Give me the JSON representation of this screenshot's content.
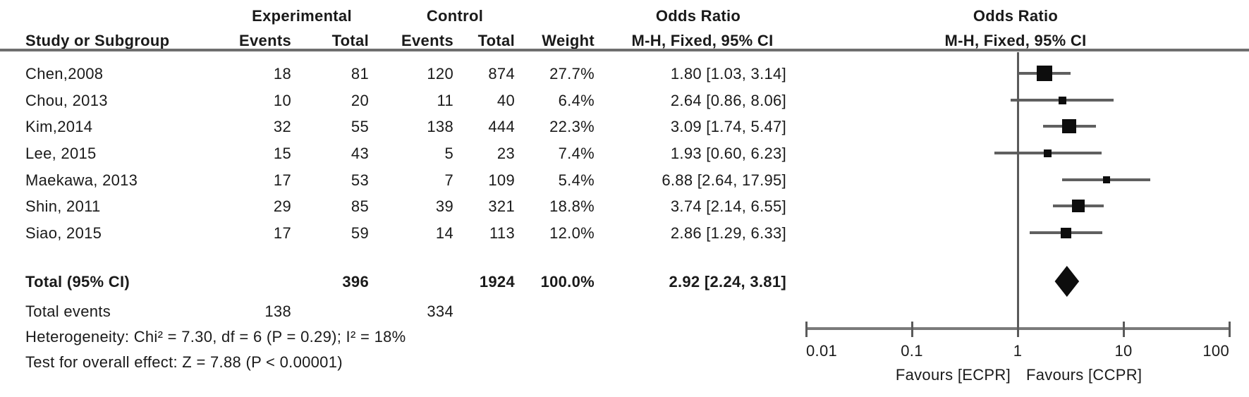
{
  "header": {
    "group_experimental": "Experimental",
    "group_control": "Control",
    "col_study": "Study or Subgroup",
    "col_events": "Events",
    "col_total": "Total",
    "col_weight": "Weight",
    "or_title": "Odds Ratio",
    "or_subtitle": "M-H, Fixed, 95% CI"
  },
  "footnotes": {
    "heterogeneity": "Heterogeneity: Chi² = 7.30, df = 6 (P = 0.29); I² = 18%",
    "overall_effect": "Test for overall effect: Z = 7.88 (P < 0.00001)"
  },
  "chart_data": {
    "type": "forest",
    "effect_measure": "Odds Ratio",
    "method": "M-H, Fixed, 95% CI",
    "scale": "log10",
    "xlim": [
      0.01,
      100
    ],
    "axis_ticks": [
      0.01,
      0.1,
      1,
      10,
      100
    ],
    "axis_tick_labels": [
      "0.01",
      "0.1",
      "1",
      "10",
      "100"
    ],
    "favours_left": "Favours [ECPR]",
    "favours_right": "Favours [CCPR]",
    "marker_color": "#0d0d0d",
    "studies": [
      {
        "name": "Chen,2008",
        "exp_events": "18",
        "exp_total": "81",
        "ctrl_events": "120",
        "ctrl_total": "874",
        "weight": "27.7%",
        "weight_pct": 27.7,
        "or": 1.8,
        "ci_low": 1.03,
        "ci_high": 3.14,
        "ci_text": "1.80 [1.03, 3.14]"
      },
      {
        "name": "Chou, 2013",
        "exp_events": "10",
        "exp_total": "20",
        "ctrl_events": "11",
        "ctrl_total": "40",
        "weight": "6.4%",
        "weight_pct": 6.4,
        "or": 2.64,
        "ci_low": 0.86,
        "ci_high": 8.06,
        "ci_text": "2.64 [0.86, 8.06]"
      },
      {
        "name": "Kim,2014",
        "exp_events": "32",
        "exp_total": "55",
        "ctrl_events": "138",
        "ctrl_total": "444",
        "weight": "22.3%",
        "weight_pct": 22.3,
        "or": 3.09,
        "ci_low": 1.74,
        "ci_high": 5.47,
        "ci_text": "3.09 [1.74, 5.47]"
      },
      {
        "name": "Lee, 2015",
        "exp_events": "15",
        "exp_total": "43",
        "ctrl_events": "5",
        "ctrl_total": "23",
        "weight": "7.4%",
        "weight_pct": 7.4,
        "or": 1.93,
        "ci_low": 0.6,
        "ci_high": 6.23,
        "ci_text": "1.93 [0.60, 6.23]"
      },
      {
        "name": "Maekawa, 2013",
        "exp_events": "17",
        "exp_total": "53",
        "ctrl_events": "7",
        "ctrl_total": "109",
        "weight": "5.4%",
        "weight_pct": 5.4,
        "or": 6.88,
        "ci_low": 2.64,
        "ci_high": 17.95,
        "ci_text": "6.88 [2.64, 17.95]"
      },
      {
        "name": "Shin, 2011",
        "exp_events": "29",
        "exp_total": "85",
        "ctrl_events": "39",
        "ctrl_total": "321",
        "weight": "18.8%",
        "weight_pct": 18.8,
        "or": 3.74,
        "ci_low": 2.14,
        "ci_high": 6.55,
        "ci_text": "3.74 [2.14, 6.55]"
      },
      {
        "name": "Siao, 2015",
        "exp_events": "17",
        "exp_total": "59",
        "ctrl_events": "14",
        "ctrl_total": "113",
        "weight": "12.0%",
        "weight_pct": 12.0,
        "or": 2.86,
        "ci_low": 1.29,
        "ci_high": 6.33,
        "ci_text": "2.86 [1.29, 6.33]"
      }
    ],
    "total": {
      "label": "Total (95% CI)",
      "exp_total": "396",
      "ctrl_total": "1924",
      "weight": "100.0%",
      "or": 2.92,
      "ci_low": 2.24,
      "ci_high": 3.81,
      "ci_text": "2.92 [2.24, 3.81]",
      "events_label": "Total events",
      "exp_events": "138",
      "ctrl_events": "334"
    }
  }
}
